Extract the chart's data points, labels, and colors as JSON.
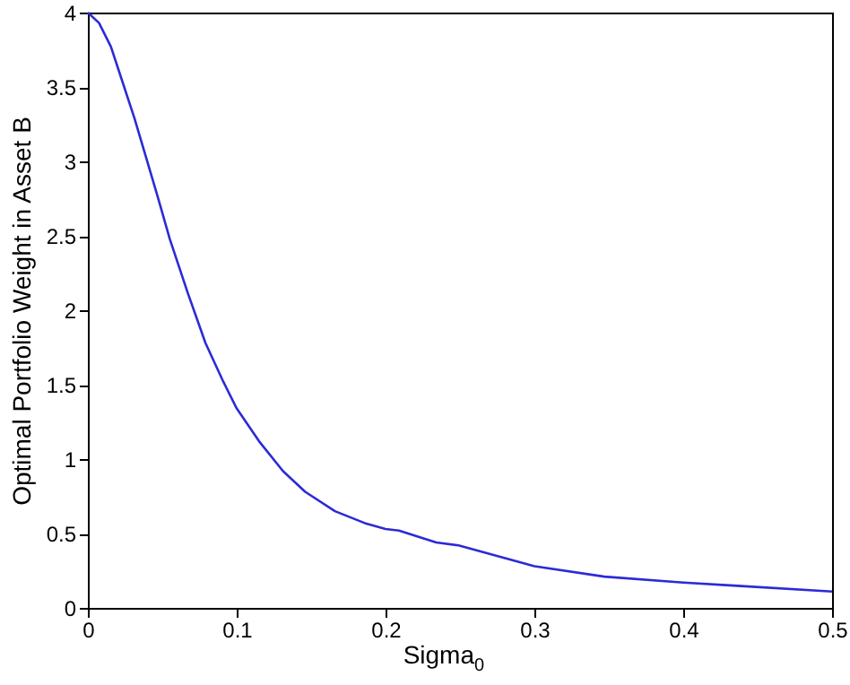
{
  "chart_data": {
    "type": "line",
    "xlabel": "Sigma$_{0}$",
    "ylabel": "Optimal Portfolio Weight in Asset B",
    "x": [
      0,
      0.0075,
      0.0155,
      0.0234,
      0.0313,
      0.0393,
      0.047,
      0.055,
      0.067,
      0.079,
      0.091,
      0.1,
      0.115,
      0.131,
      0.146,
      0.166,
      0.186,
      0.2,
      0.209,
      0.234,
      0.249,
      0.3,
      0.347,
      0.4,
      0.434,
      0.5
    ],
    "series": [
      {
        "color": "#2b2bd6",
        "values": [
          4.0,
          3.93,
          3.77,
          3.53,
          3.29,
          3.02,
          2.76,
          2.48,
          2.12,
          1.78,
          1.52,
          1.34,
          1.12,
          0.92,
          0.78,
          0.65,
          0.57,
          0.53,
          0.52,
          0.44,
          0.42,
          0.28,
          0.21,
          0.17,
          0.15,
          0.11
        ]
      }
    ],
    "xlim": [
      0,
      0.5
    ],
    "xticks": [
      0,
      0.1,
      0.2,
      0.3,
      0.4,
      0.5
    ],
    "ylim": [
      0,
      4
    ],
    "yticks": [
      0,
      0.5,
      1,
      1.5,
      2,
      2.5,
      3,
      3.5,
      4
    ],
    "grid": false,
    "marker": "none",
    "line_style": "solid"
  }
}
